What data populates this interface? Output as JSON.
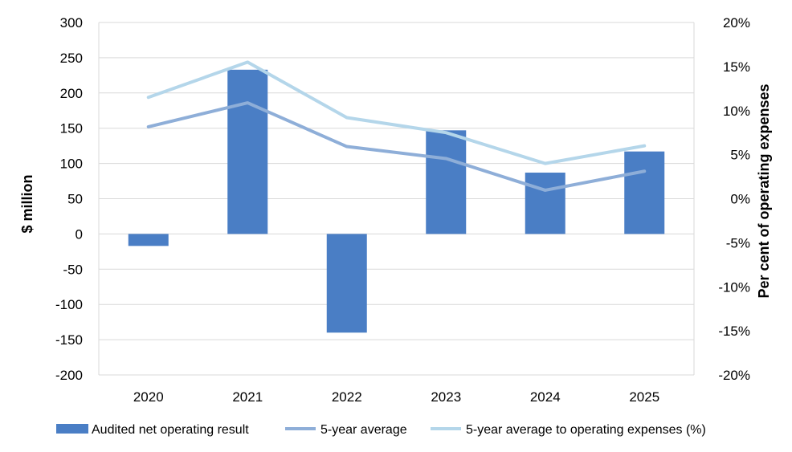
{
  "chart_data": {
    "type": "bar",
    "categories": [
      "2020",
      "2021",
      "2022",
      "2023",
      "2024",
      "2025"
    ],
    "series": [
      {
        "name": "Audited net operating result",
        "type": "bar",
        "axis": "left",
        "color": "#4a7ec5",
        "values": [
          -17,
          233,
          -140,
          147,
          87,
          117
        ]
      },
      {
        "name": "5-year average",
        "type": "line",
        "axis": "left",
        "color": "#8eaed8",
        "values": [
          152,
          186,
          124,
          107,
          62,
          89
        ]
      },
      {
        "name": "5-year average to operating expenses (%)",
        "type": "line",
        "axis": "right",
        "color": "#b4d6ea",
        "values": [
          11.5,
          15.5,
          9.2,
          7.5,
          4.0,
          6.0
        ]
      }
    ],
    "ylabel": "$ million",
    "y2label": "Per cent of operating expenses",
    "ylim": [
      -200,
      300
    ],
    "y2lim": [
      -20,
      20
    ],
    "yticks": [
      "300",
      "250",
      "200",
      "150",
      "100",
      "50",
      "0",
      "-50",
      "-100",
      "-150",
      "-200"
    ],
    "y2ticks": [
      "20%",
      "15%",
      "10%",
      "5%",
      "0%",
      "-5%",
      "-10%",
      "-15%",
      "-20%"
    ],
    "grid": true,
    "legend_position": "bottom"
  }
}
